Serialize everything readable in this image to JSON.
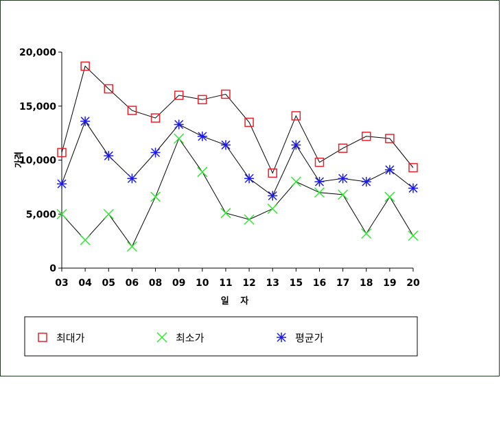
{
  "chart_data": {
    "type": "line",
    "title": "",
    "xlabel": "일 자",
    "ylabel": "가격",
    "categories": [
      "03",
      "04",
      "05",
      "06",
      "08",
      "09",
      "10",
      "11",
      "12",
      "13",
      "15",
      "16",
      "17",
      "18",
      "19",
      "20"
    ],
    "ylim": [
      0,
      20000
    ],
    "yticks": [
      0,
      5000,
      10000,
      15000,
      20000
    ],
    "ytick_labels": [
      "0",
      "5,000",
      "10,000",
      "15,000",
      "20,000"
    ],
    "grid": false,
    "legend_position": "bottom",
    "series": [
      {
        "name": "최대가",
        "marker": "square",
        "color": "#e8202a",
        "values": [
          10700,
          18700,
          16600,
          14600,
          13900,
          16000,
          15600,
          16100,
          13500,
          8800,
          14100,
          9800,
          11100,
          12200,
          12000,
          9300
        ]
      },
      {
        "name": "최소가",
        "marker": "x",
        "color": "#2ee82e",
        "values": [
          5000,
          2600,
          5000,
          2000,
          6600,
          12000,
          8900,
          5100,
          4500,
          5500,
          8000,
          7000,
          6800,
          3200,
          6600,
          3000
        ]
      },
      {
        "name": "평균가",
        "marker": "asterisk",
        "color": "#1a1ae8",
        "values": [
          7800,
          13600,
          10400,
          8300,
          10700,
          13300,
          12200,
          11400,
          8300,
          6700,
          11400,
          8000,
          8300,
          8000,
          9100,
          7400
        ]
      }
    ]
  }
}
